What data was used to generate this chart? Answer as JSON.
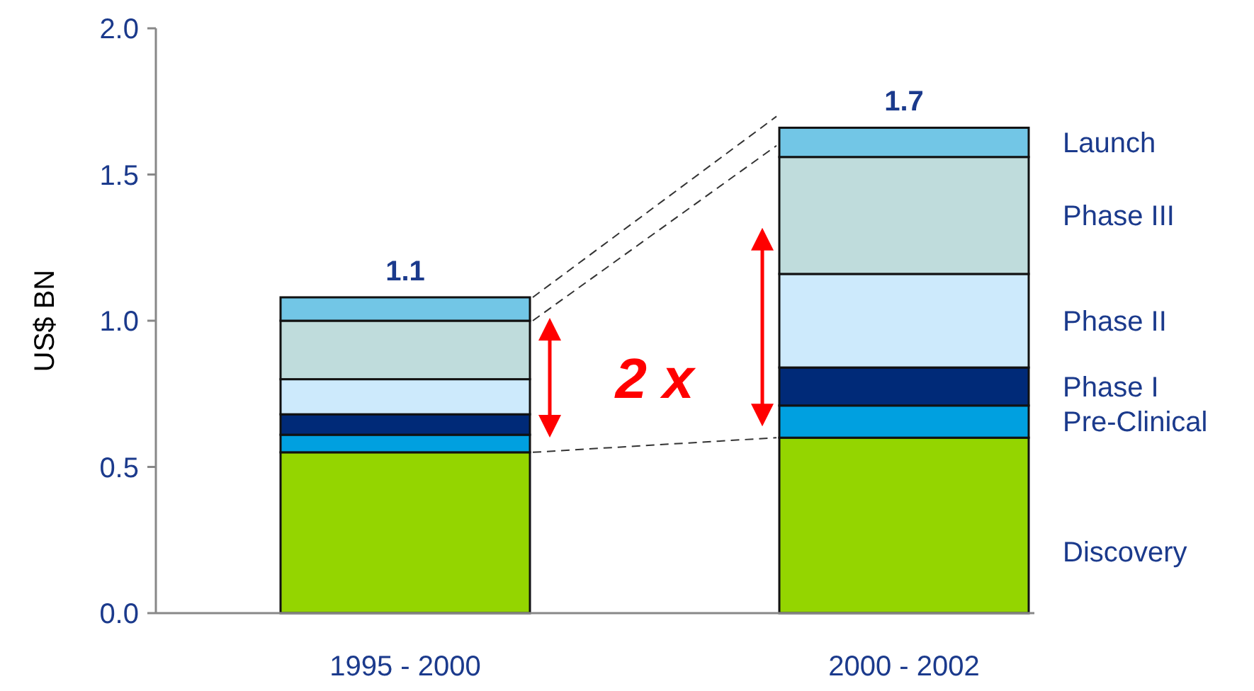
{
  "chart_data": {
    "type": "bar",
    "stacked": true,
    "categories": [
      "1995 - 2000",
      "2000 - 2002"
    ],
    "series": [
      {
        "name": "Discovery",
        "color": "#94d500",
        "values": [
          0.55,
          0.6
        ]
      },
      {
        "name": "Pre-Clinical",
        "color": "#00a0e0",
        "values": [
          0.06,
          0.11
        ]
      },
      {
        "name": "Phase I",
        "color": "#002a78",
        "values": [
          0.07,
          0.13
        ]
      },
      {
        "name": "Phase II",
        "color": "#cdeafc",
        "values": [
          0.12,
          0.32
        ]
      },
      {
        "name": "Phase III",
        "color": "#bfdcdc",
        "values": [
          0.2,
          0.4
        ]
      },
      {
        "name": "Launch",
        "color": "#72c6e6",
        "values": [
          0.08,
          0.1
        ]
      }
    ],
    "ylabel": "US$ BN",
    "ylim": [
      0,
      2
    ],
    "yticks": [
      {
        "value": 0,
        "label": "0.0"
      },
      {
        "value": 0.5,
        "label": "0.5"
      },
      {
        "value": 1,
        "label": "1.0"
      },
      {
        "value": 1.5,
        "label": "1.5"
      },
      {
        "value": 2,
        "label": "2.0"
      }
    ],
    "totals": [
      "1.1",
      "1.7"
    ],
    "annotations": [
      "2 x"
    ],
    "legend": "right"
  }
}
